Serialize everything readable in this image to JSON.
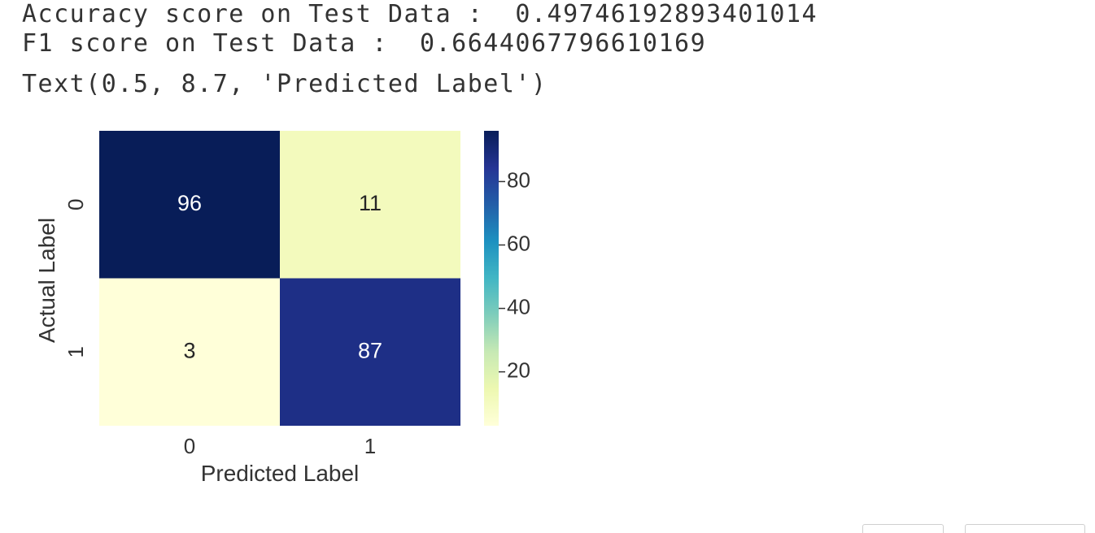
{
  "output": {
    "accuracy_line": "Accuracy score on Test Data :  0.49746192893401014",
    "f1_line": "F1 score on Test Data :  0.6644067796610169",
    "text_repr": "Text(0.5, 8.7, 'Predicted Label')"
  },
  "chart_data": {
    "type": "heatmap",
    "xlabel": "Predicted Label",
    "ylabel": "Actual Label",
    "x_categories": [
      "0",
      "1"
    ],
    "y_categories": [
      "0",
      "1"
    ],
    "values": [
      [
        96,
        11
      ],
      [
        3,
        87
      ]
    ],
    "colormap": "YlGnBu",
    "colorbar": {
      "range": [
        3,
        96
      ],
      "ticks": [
        20,
        40,
        60,
        80
      ],
      "placement": "right"
    },
    "annotations": true
  }
}
